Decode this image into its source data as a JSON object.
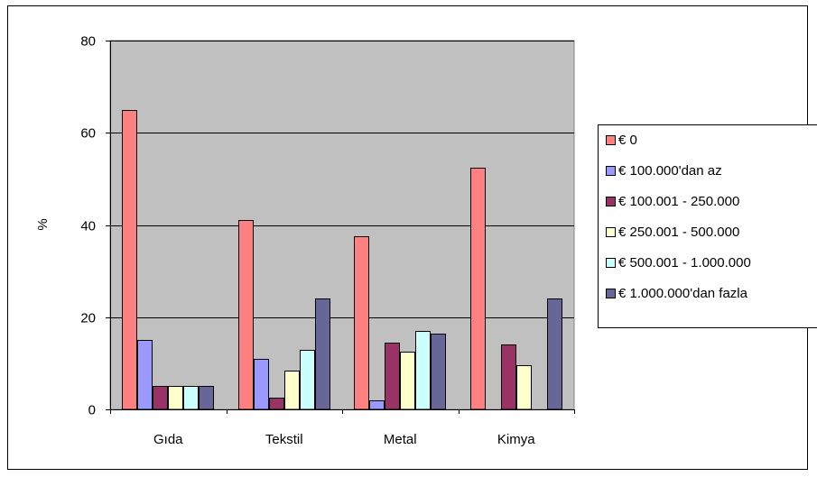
{
  "chart_data": {
    "type": "bar",
    "title": "",
    "xlabel": "",
    "ylabel": "%",
    "ylim": [
      0,
      80
    ],
    "yticks": [
      0,
      20,
      40,
      60,
      80
    ],
    "grid": true,
    "legend_position": "right",
    "plot_background": "#c0c0c0",
    "categories": [
      "Gıda",
      "Tekstil",
      "Metal",
      "Kimya"
    ],
    "series": [
      {
        "name": "€ 0",
        "color": "#ff8080",
        "values": [
          65,
          41,
          37.5,
          52.5
        ]
      },
      {
        "name": "€ 100.000'dan az",
        "color": "#9999ff",
        "values": [
          15,
          11,
          2,
          0
        ]
      },
      {
        "name": "€ 100.001 - 250.000",
        "color": "#993366",
        "values": [
          5,
          2.5,
          14.5,
          14
        ]
      },
      {
        "name": "€ 250.001 - 500.000",
        "color": "#ffffcc",
        "values": [
          5,
          8.5,
          12.5,
          9.5
        ]
      },
      {
        "name": "€ 500.001 - 1.000.000",
        "color": "#ccffff",
        "values": [
          5,
          13,
          17,
          0
        ]
      },
      {
        "name": "€ 1.000.000'dan fazla",
        "color": "#666699",
        "values": [
          5,
          24,
          16.5,
          24
        ]
      }
    ]
  }
}
